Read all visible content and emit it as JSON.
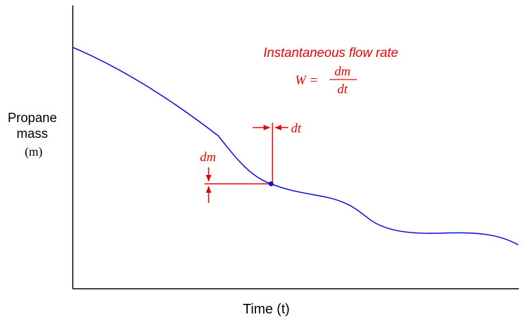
{
  "colors": {
    "axis": "#000000",
    "curve": "#1010dd",
    "annotation": "#ee0000"
  },
  "axes": {
    "y_label_line1": "Propane",
    "y_label_line2": "mass",
    "y_label_symbol": "(m)",
    "x_label": "Time (t)"
  },
  "annotation": {
    "title": "Instantaneous flow rate",
    "formula_lhs": "W =",
    "formula_numerator": "dm",
    "formula_denominator": "dt",
    "dt_label": "dt",
    "dm_label": "dm"
  }
}
